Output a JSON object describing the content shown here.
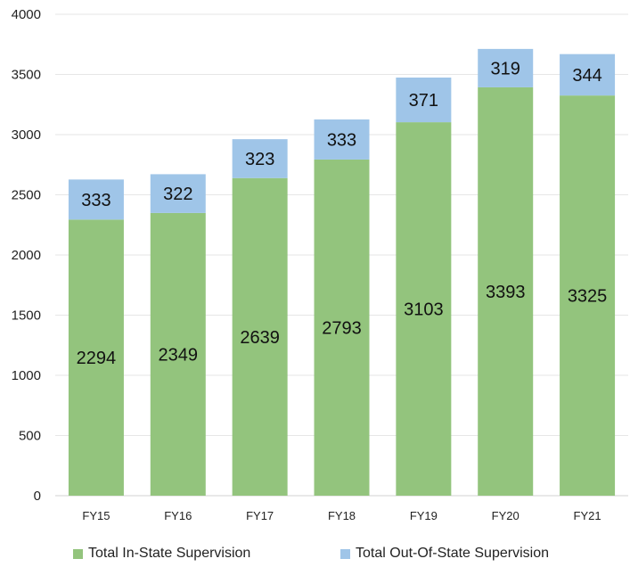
{
  "chart_data": {
    "type": "bar",
    "stacked": true,
    "categories": [
      "FY15",
      "FY16",
      "FY17",
      "FY18",
      "FY19",
      "FY20",
      "FY21"
    ],
    "series": [
      {
        "name": "Total In-State Supervision",
        "values": [
          2294,
          2349,
          2639,
          2793,
          3103,
          3393,
          3325
        ],
        "color": "#93c47d"
      },
      {
        "name": "Total Out-Of-State Supervision",
        "values": [
          333,
          322,
          323,
          333,
          371,
          319,
          344
        ],
        "color": "#9fc5e8"
      }
    ],
    "title": "",
    "xlabel": "",
    "ylabel": "",
    "ylim": [
      0,
      4000
    ],
    "yticks": [
      0,
      500,
      1000,
      1500,
      2000,
      2500,
      3000,
      3500,
      4000
    ],
    "grid": true,
    "legend_position": "bottom"
  }
}
